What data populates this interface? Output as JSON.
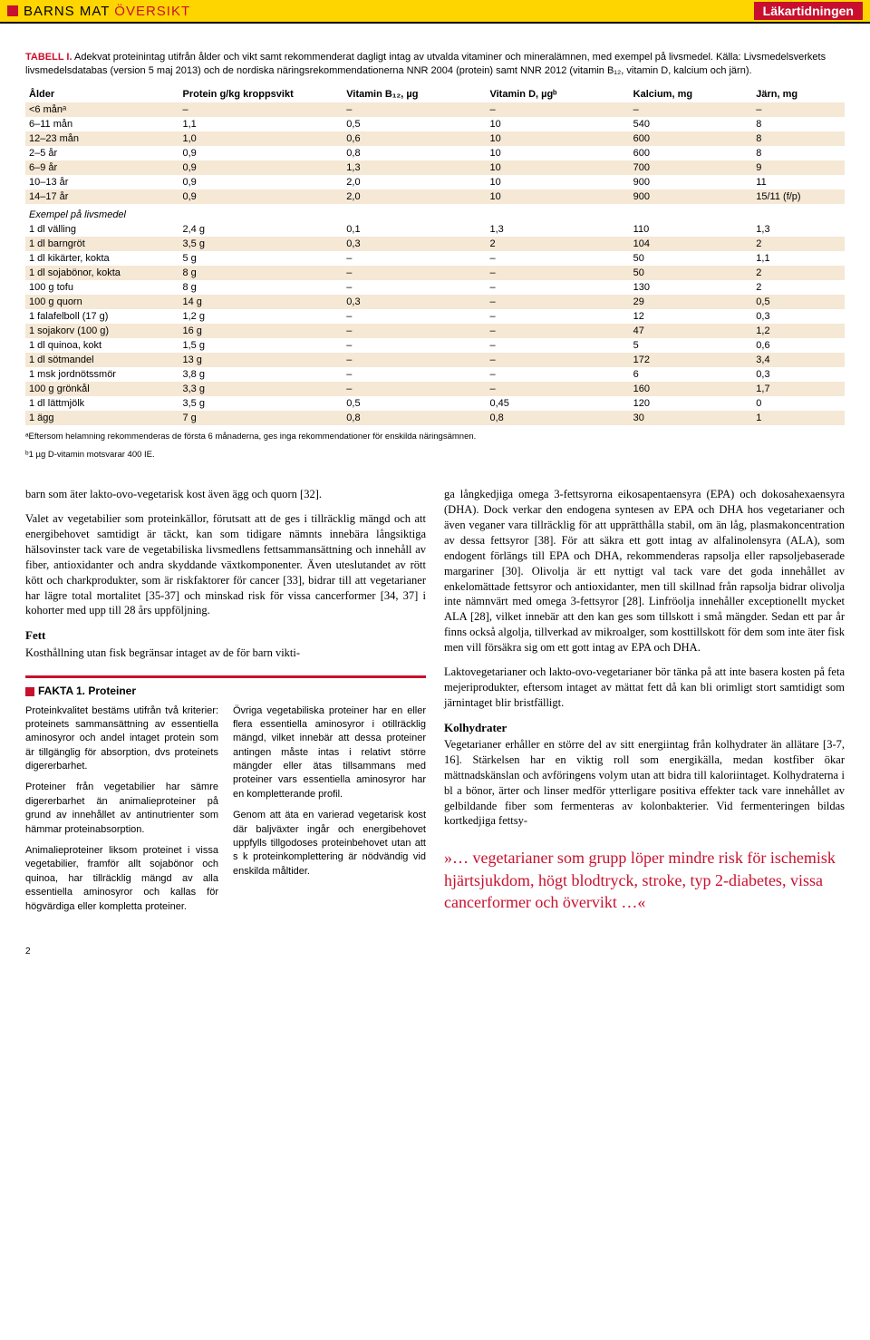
{
  "topbar": {
    "title_part1": "BARNS MAT ",
    "title_part2": "ÖVERSIKT",
    "brand": "Läkartidningen"
  },
  "table_caption": {
    "label": "TABELL I.",
    "text": " Adekvat proteinintag utifrån ålder och vikt samt rekommenderat dagligt intag av utvalda vitaminer och mineralämnen, med exempel på livsmedel. Källa: Livsmedelsverkets livsmedelsdatabas (version 5 maj 2013) och de nordiska näringsrekommendationerna NNR 2004 (protein) samt NNR 2012 (vitamin B₁₂, vitamin D, kalcium och järn)."
  },
  "table": {
    "headers": [
      "Ålder",
      "Protein g/kg kroppsvikt",
      "Vitamin B₁₂, µg",
      "Vitamin D, µgᵇ",
      "Kalcium, mg",
      "Järn, mg"
    ],
    "age_rows": [
      {
        "c": [
          "<6 månᵃ",
          "–",
          "–",
          "–",
          "–",
          "–"
        ]
      },
      {
        "c": [
          "6–11 mån",
          "1,1",
          "0,5",
          "10",
          "540",
          "8"
        ]
      },
      {
        "c": [
          "12–23 mån",
          "1,0",
          "0,6",
          "10",
          "600",
          "8"
        ]
      },
      {
        "c": [
          "2–5 år",
          "0,9",
          "0,8",
          "10",
          "600",
          "8"
        ]
      },
      {
        "c": [
          "6–9 år",
          "0,9",
          "1,3",
          "10",
          "700",
          "9"
        ]
      },
      {
        "c": [
          "10–13 år",
          "0,9",
          "2,0",
          "10",
          "900",
          "11"
        ]
      },
      {
        "c": [
          "14–17 år",
          "0,9",
          "2,0",
          "10",
          "900",
          "15/11 (f/p)"
        ]
      }
    ],
    "example_head": "Exempel på livsmedel",
    "food_rows": [
      {
        "c": [
          "1 dl välling",
          "2,4 g",
          "0,1",
          "1,3",
          "110",
          "1,3"
        ]
      },
      {
        "c": [
          "1 dl barngröt",
          "3,5 g",
          "0,3",
          "2",
          "104",
          "2"
        ]
      },
      {
        "c": [
          "1 dl kikärter, kokta",
          "5 g",
          "–",
          "–",
          "50",
          "1,1"
        ]
      },
      {
        "c": [
          "1 dl sojabönor, kokta",
          "8 g",
          "–",
          "–",
          "50",
          "2"
        ]
      },
      {
        "c": [
          "100 g tofu",
          "8 g",
          "–",
          "–",
          "130",
          "2"
        ]
      },
      {
        "c": [
          "100 g quorn",
          "14 g",
          "0,3",
          "–",
          "29",
          "0,5"
        ]
      },
      {
        "c": [
          "1 falafelboll (17 g)",
          "1,2 g",
          "–",
          "–",
          "12",
          "0,3"
        ]
      },
      {
        "c": [
          "1 sojakorv (100 g)",
          "16 g",
          "–",
          "–",
          "47",
          "1,2"
        ]
      },
      {
        "c": [
          "1 dl quinoa, kokt",
          "1,5 g",
          "–",
          "–",
          "5",
          "0,6"
        ]
      },
      {
        "c": [
          "1 dl sötmandel",
          "13 g",
          "–",
          "–",
          "172",
          "3,4"
        ]
      },
      {
        "c": [
          "1 msk jordnötssmör",
          "3,8 g",
          "–",
          "–",
          "6",
          "0,3"
        ]
      },
      {
        "c": [
          "100 g grönkål",
          "3,3 g",
          "–",
          "–",
          "160",
          "1,7"
        ]
      },
      {
        "c": [
          "1 dl lättmjölk",
          "3,5 g",
          "0,5",
          "0,45",
          "120",
          "0"
        ]
      },
      {
        "c": [
          "1 ägg",
          "7 g",
          "0,8",
          "0,8",
          "30",
          "1"
        ]
      }
    ]
  },
  "footnotes": {
    "a": "ᵃEftersom helamning rekommenderas de första 6 månaderna, ges inga rekommendationer för enskilda näringsämnen.",
    "b": "ᵇ1 µg D-vitamin motsvarar 400 IE."
  },
  "body_left": {
    "p1": "barn som äter lakto-ovo-vegetarisk kost även ägg och quorn [32].",
    "p2": "Valet av vegetabilier som proteinkällor, förutsatt att de ges i tillräcklig mängd och att energibehovet samtidigt är täckt, kan som tidigare nämnts innebära långsiktiga hälsovinster tack vare de vegetabiliska livsmedlens fettsammansättning och innehåll av fiber, antioxidanter och andra skyddande växtkomponenter. Även uteslutandet av rött kött och charkprodukter, som är riskfaktorer för cancer [33], bidrar till att vegetarianer har lägre total mortalitet [35-37] och minskad risk för vissa cancerformer [34, 37] i kohorter med upp till 28 års uppföljning.",
    "fett_head": "Fett",
    "p3": "Kosthållning utan fisk begränsar intaget av de för barn vikti-"
  },
  "fakta": {
    "title": "FAKTA 1. Proteiner",
    "col1_p1": "Proteinkvalitet bestäms utifrån två kriterier: proteinets sammansättning av essentiella aminosyror och andel intaget protein som är tillgänglig för absorption, dvs proteinets digererbarhet.",
    "col1_p2": "Proteiner från vegetabilier har sämre digererbarhet än animalieproteiner på grund av innehållet av antinutrienter som hämmar proteinabsorption.",
    "col1_p3": "Animalieproteiner liksom proteinet i vissa vegetabilier, framför allt sojabönor och quinoa, har tillräcklig mängd av alla essentiella aminosyror och kallas för högvärdiga eller kompletta proteiner.",
    "col2_p1": "Övriga vegetabiliska proteiner har en eller flera essentiella aminosyror i otillräcklig mängd, vilket innebär att dessa proteiner antingen måste intas i relativt större mängder eller ätas tillsammans med proteiner vars essentiella aminosyror har en kompletterande profil.",
    "col2_p2": "Genom att äta en varierad vegetarisk kost där baljväxter ingår och energibehovet uppfylls tillgodoses proteinbehovet utan att s k proteinkomplettering är nödvändig vid enskilda måltider."
  },
  "body_right": {
    "p1": "ga långkedjiga omega 3-fettsyrorna eikosapentaensyra (EPA) och dokosahexaensyra (DHA). Dock verkar den endogena syntesen av EPA och DHA hos vegetarianer och även veganer vara tillräcklig för att upprätthålla stabil, om än låg, plasmakoncentration av dessa fettsyror [38]. För att säkra ett gott intag av alfalinolensyra (ALA), som endogent förlängs till EPA och DHA, rekommenderas rapsolja eller rapsoljebaserade margariner [30]. Olivolja är ett nyttigt val tack vare det goda innehållet av enkelomättade fettsyror och antioxidanter, men till skillnad från rapsolja bidrar olivolja inte nämnvärt med omega 3-fettsyror [28]. Linfröolja innehåller exceptionellt mycket ALA [28], vilket innebär att den kan ges som tillskott i små mängder. Sedan ett par år finns också algolja, tillverkad av mikroalger, som kosttillskott för dem som inte äter fisk men vill försäkra sig om ett gott intag av EPA och DHA.",
    "p2": "Laktovegetarianer och lakto-ovo-vegetarianer bör tänka på att inte basera kosten på feta mejeriprodukter, eftersom intaget av mättat fett då kan bli orimligt stort samtidigt som järnintaget blir bristfälligt.",
    "kol_head": "Kolhydrater",
    "p3": "Vegetarianer erhåller en större del av sitt energiintag från kolhydrater än allätare [3-7, 16]. Stärkelsen har en viktig roll som energikälla, medan kostfiber ökar mättnadskänslan och avföringens volym utan att bidra till kaloriintaget. Kolhydraterna i bl a bönor, ärter och linser medför ytterligare positiva effekter tack vare innehållet av gelbildande fiber som fermenteras av kolonbakterier. Vid fermenteringen bildas kortkedjiga fettsy-"
  },
  "pullquote": "»… vegetarianer som grupp löper mindre risk för ischemisk hjärtsjukdom, högt blodtryck, stroke, typ 2-diabetes, vissa cancerformer och övervikt …«",
  "pagenum": "2"
}
